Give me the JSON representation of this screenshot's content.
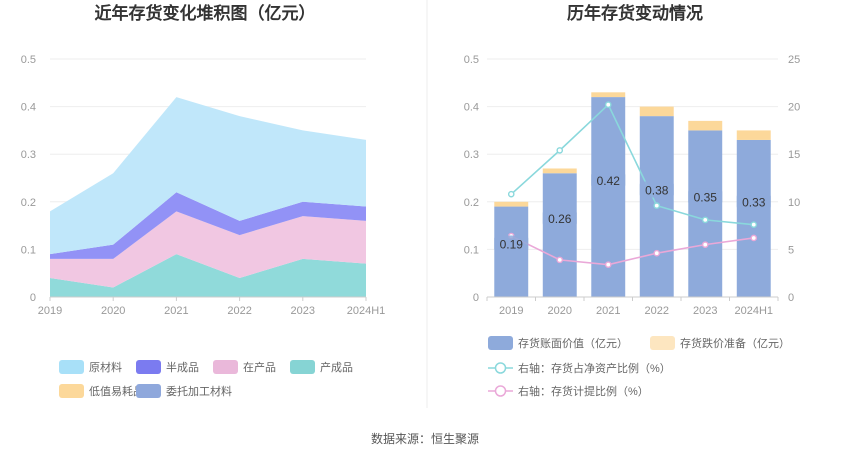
{
  "source": "数据来源：恒生聚源",
  "chart_data": [
    {
      "type": "area",
      "title": "近年存货变化堆积图（亿元）",
      "stacked": true,
      "x": [
        "2019",
        "2020",
        "2021",
        "2022",
        "2023",
        "2024H1"
      ],
      "ylim": [
        0,
        0.5
      ],
      "yticks": [
        "0",
        "0.1",
        "0.2",
        "0.3",
        "0.4",
        "0.5"
      ],
      "grid": true,
      "legend_position": "bottom",
      "series": [
        {
          "name": "产成品",
          "color": "#8ad8d8",
          "values": [
            0.04,
            0.02,
            0.09,
            0.04,
            0.08,
            0.07
          ]
        },
        {
          "name": "在产品",
          "color": "#f0c4e0",
          "values": [
            0.04,
            0.06,
            0.09,
            0.09,
            0.09,
            0.09
          ]
        },
        {
          "name": "半成品",
          "color": "#8c8cf5",
          "values": [
            0.01,
            0.03,
            0.04,
            0.03,
            0.03,
            0.03
          ]
        },
        {
          "name": "原材料",
          "color": "#bde6fa",
          "values": [
            0.09,
            0.15,
            0.2,
            0.22,
            0.15,
            0.14
          ]
        },
        {
          "name": "低值易耗品",
          "color": "#fcd89a",
          "values": [
            0,
            0,
            0,
            0,
            0,
            0
          ]
        },
        {
          "name": "委托加工材料",
          "color": "#8fa8dc",
          "values": [
            0,
            0,
            0,
            0,
            0,
            0
          ]
        }
      ],
      "legend": [
        {
          "name": "原材料",
          "color": "#a8e0f8"
        },
        {
          "name": "半成品",
          "color": "#7b7bf0"
        },
        {
          "name": "在产品",
          "color": "#eab8da"
        },
        {
          "name": "产成品",
          "color": "#86d4d4"
        },
        {
          "name": "低值易耗品",
          "color": "#fcd89a"
        },
        {
          "name": "委托加工材料",
          "color": "#8fa8dc"
        }
      ]
    },
    {
      "type": "bar",
      "title": "历年存货变动情况",
      "categories": [
        "2019",
        "2020",
        "2021",
        "2022",
        "2023",
        "2024H1"
      ],
      "ylim": [
        0,
        0.5
      ],
      "yticks": [
        "0",
        "0.1",
        "0.2",
        "0.3",
        "0.4",
        "0.5"
      ],
      "y2lim": [
        0,
        25
      ],
      "y2ticks": [
        "0",
        "5",
        "10",
        "15",
        "20",
        "25"
      ],
      "grid": true,
      "legend_position": "bottom",
      "series": [
        {
          "name": "存货账面价值（亿元）",
          "type": "bar",
          "axis": "left",
          "color": "#8eaadb",
          "values": [
            0.19,
            0.26,
            0.42,
            0.38,
            0.35,
            0.33
          ],
          "labels": [
            "0.19",
            "0.26",
            "0.42",
            "0.38",
            "0.35",
            "0.33"
          ]
        },
        {
          "name": "存货跌价准备（亿元）",
          "type": "bar",
          "axis": "left",
          "color": "#fcd89a",
          "values": [
            0.01,
            0.01,
            0.01,
            0.02,
            0.02,
            0.02
          ]
        },
        {
          "name": "右轴：存货占净资产比例（%）",
          "type": "line",
          "axis": "right",
          "color": "#8ad8dc",
          "values": [
            10.8,
            15.4,
            20.2,
            9.6,
            8.1,
            7.6
          ]
        },
        {
          "name": "右轴：存货计提比例（%）",
          "type": "line",
          "axis": "right",
          "color": "#eaa8d8",
          "values": [
            6.4,
            3.9,
            3.4,
            4.6,
            5.5,
            6.2
          ]
        }
      ]
    }
  ]
}
